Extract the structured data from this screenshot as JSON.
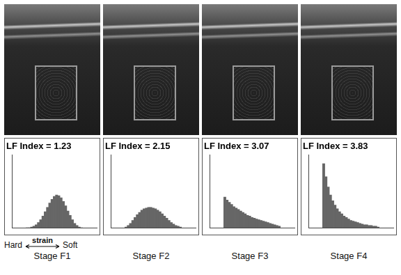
{
  "chart_data": [
    {
      "type": "histogram",
      "title": "LF Index = 1.23",
      "xlabel": "Stage F1",
      "bins": [
        0,
        10,
        20,
        30,
        40,
        50,
        60,
        70,
        80,
        90,
        100,
        110,
        120,
        130,
        140,
        150,
        160,
        170,
        180,
        190,
        200,
        210,
        220,
        230,
        240,
        250
      ],
      "values": [
        0,
        0,
        1,
        2,
        4,
        7,
        11,
        16,
        22,
        28,
        34,
        39,
        43,
        45,
        44,
        41,
        36,
        30,
        23,
        17,
        11,
        6,
        3,
        1,
        0
      ],
      "color": "#666666",
      "xlim": [
        0,
        250
      ],
      "ylim": [
        0,
        100
      ],
      "grid": false,
      "tick_labels": false
    },
    {
      "type": "histogram",
      "title": "LF Index = 2.15",
      "xlabel": "Stage F2",
      "bins": [
        0,
        10,
        20,
        30,
        40,
        50,
        60,
        70,
        80,
        90,
        100,
        110,
        120,
        130,
        140,
        150,
        160,
        170,
        180,
        190,
        200,
        210,
        220,
        230,
        240,
        250
      ],
      "values": [
        1,
        3,
        6,
        10,
        14,
        18,
        21,
        24,
        26,
        27,
        28,
        28,
        27,
        26,
        24,
        22,
        19,
        16,
        13,
        10,
        7,
        5,
        3,
        2,
        1
      ],
      "color": "#666666",
      "xlim": [
        0,
        250
      ],
      "ylim": [
        0,
        100
      ],
      "grid": false,
      "tick_labels": false
    },
    {
      "type": "histogram",
      "title": "LF Index = 3.07",
      "xlabel": "Stage F3",
      "bins": [
        0,
        10,
        20,
        30,
        40,
        50,
        60,
        70,
        80,
        90,
        100,
        110,
        120,
        130,
        140,
        150,
        160,
        170,
        180,
        190,
        200,
        210,
        220,
        230,
        240,
        250
      ],
      "values": [
        42,
        38,
        35,
        32,
        29,
        27,
        25,
        23,
        21,
        19,
        17,
        16,
        14,
        13,
        12,
        11,
        10,
        9,
        8,
        7,
        6,
        5,
        4,
        3,
        2
      ],
      "color": "#666666",
      "xlim": [
        0,
        250
      ],
      "ylim": [
        0,
        100
      ],
      "grid": false,
      "tick_labels": false
    },
    {
      "type": "histogram",
      "title": "LF Index = 3.83",
      "xlabel": "Stage F4",
      "bins": [
        0,
        10,
        20,
        30,
        40,
        50,
        60,
        70,
        80,
        90,
        100,
        110,
        120,
        130,
        140,
        150,
        160,
        170,
        180,
        190,
        200,
        210,
        220,
        230,
        240,
        250
      ],
      "values": [
        88,
        70,
        56,
        45,
        37,
        31,
        26,
        22,
        19,
        16,
        14,
        12,
        10,
        9,
        8,
        7,
        6,
        5,
        4,
        4,
        3,
        3,
        2,
        2,
        1
      ],
      "color": "#666666",
      "xlim": [
        0,
        250
      ],
      "ylim": [
        0,
        100
      ],
      "grid": false,
      "tick_labels": false
    }
  ],
  "strain_scale": {
    "left": "Hard",
    "label": "strain",
    "right": "Soft"
  }
}
